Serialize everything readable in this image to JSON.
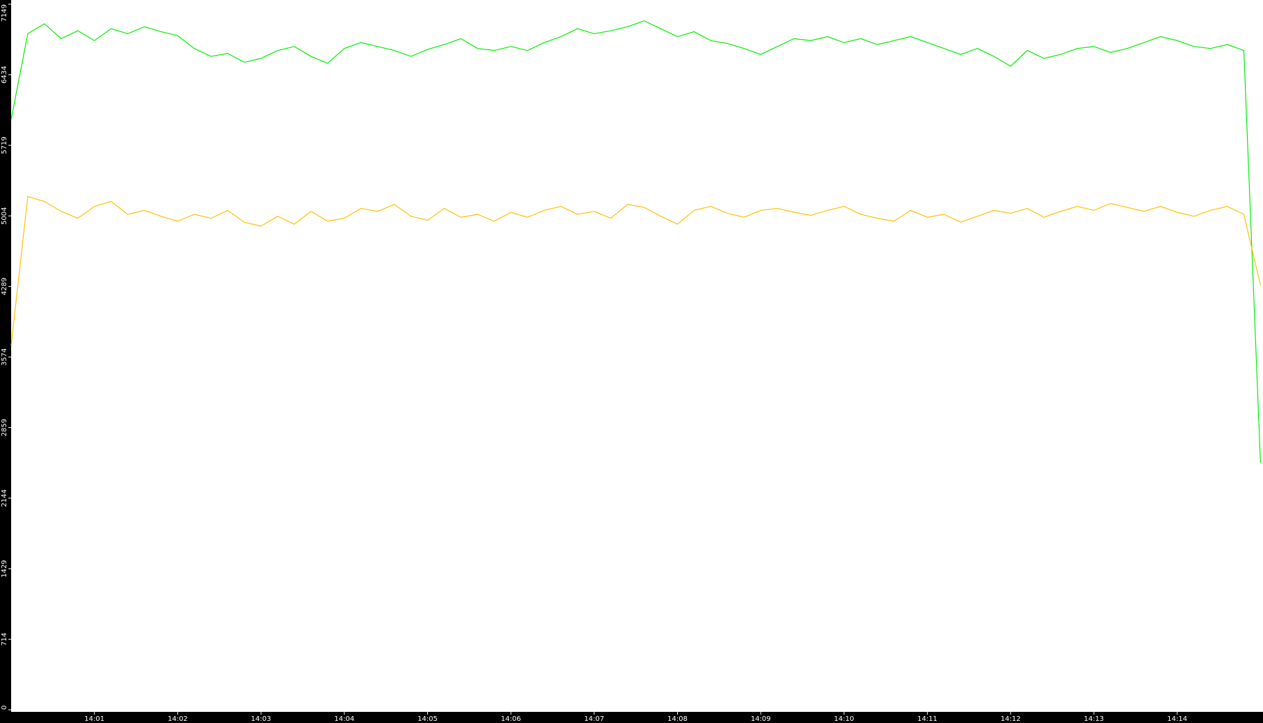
{
  "chart_data": {
    "type": "line",
    "x": [
      0,
      0.2,
      0.4,
      0.6,
      0.8,
      1,
      1.2,
      1.4,
      1.6,
      1.8,
      2,
      2.2,
      2.4,
      2.6,
      2.8,
      3,
      3.2,
      3.4,
      3.6,
      3.8,
      4,
      4.2,
      4.4,
      4.6,
      4.8,
      5,
      5.2,
      5.4,
      5.6,
      5.8,
      6,
      6.2,
      6.4,
      6.6,
      6.8,
      7,
      7.2,
      7.4,
      7.6,
      7.8,
      8,
      8.2,
      8.4,
      8.6,
      8.8,
      9,
      9.2,
      9.4,
      9.6,
      9.8,
      10,
      10.2,
      10.4,
      10.6,
      10.8,
      11,
      11.2,
      11.4,
      11.6,
      11.8,
      12,
      12.2,
      12.4,
      12.6,
      12.8,
      13,
      13.2,
      13.4,
      13.6,
      13.8,
      14,
      14.2,
      14.4,
      14.6,
      14.8,
      15
    ],
    "series": [
      {
        "color": "#00ee00",
        "values": [
          5980,
          6850,
          6950,
          6800,
          6880,
          6780,
          6900,
          6850,
          6920,
          6870,
          6830,
          6700,
          6620,
          6650,
          6560,
          6600,
          6680,
          6720,
          6620,
          6550,
          6700,
          6760,
          6720,
          6680,
          6620,
          6690,
          6740,
          6800,
          6700,
          6680,
          6720,
          6680,
          6760,
          6820,
          6900,
          6850,
          6880,
          6920,
          6980,
          6900,
          6820,
          6870,
          6780,
          6750,
          6700,
          6640,
          6720,
          6800,
          6780,
          6820,
          6760,
          6800,
          6740,
          6780,
          6820,
          6760,
          6700,
          6640,
          6700,
          6620,
          6520,
          6680,
          6600,
          6640,
          6700,
          6720,
          6660,
          6700,
          6760,
          6820,
          6780,
          6720,
          6700,
          6740,
          6680,
          2500
        ]
      },
      {
        "color": "#ffc000",
        "values": [
          3690,
          5200,
          5150,
          5050,
          4980,
          5100,
          5150,
          5020,
          5060,
          5000,
          4950,
          5020,
          4980,
          5060,
          4940,
          4900,
          5000,
          4920,
          5050,
          4950,
          4980,
          5080,
          5050,
          5120,
          5000,
          4960,
          5080,
          4990,
          5020,
          4950,
          5040,
          4990,
          5060,
          5100,
          5020,
          5050,
          4980,
          5120,
          5090,
          5000,
          4920,
          5060,
          5100,
          5030,
          4990,
          5060,
          5080,
          5040,
          5010,
          5060,
          5100,
          5020,
          4980,
          4950,
          5060,
          4990,
          5020,
          4940,
          5000,
          5060,
          5030,
          5080,
          4990,
          5050,
          5100,
          5060,
          5130,
          5090,
          5050,
          5100,
          5040,
          5000,
          5060,
          5100,
          5020,
          4300
        ]
      }
    ],
    "xlim": [
      0,
      15.03
    ],
    "xticks": [
      {
        "value": 1,
        "label": "14:01"
      },
      {
        "value": 2,
        "label": "14:02"
      },
      {
        "value": 3,
        "label": "14:03"
      },
      {
        "value": 4,
        "label": "14:04"
      },
      {
        "value": 5,
        "label": "14:05"
      },
      {
        "value": 6,
        "label": "14:06"
      },
      {
        "value": 7,
        "label": "14:07"
      },
      {
        "value": 8,
        "label": "14:08"
      },
      {
        "value": 9,
        "label": "14:09"
      },
      {
        "value": 10,
        "label": "14:10"
      },
      {
        "value": 11,
        "label": "14:11"
      },
      {
        "value": 12,
        "label": "14:12"
      },
      {
        "value": 13,
        "label": "14:13"
      },
      {
        "value": 14,
        "label": "14:14"
      }
    ],
    "ylim": [
      0,
      7149
    ],
    "yticks": [
      0,
      714,
      1429,
      2144,
      2859,
      3574,
      4289,
      5004,
      5719,
      6434,
      7149
    ]
  }
}
